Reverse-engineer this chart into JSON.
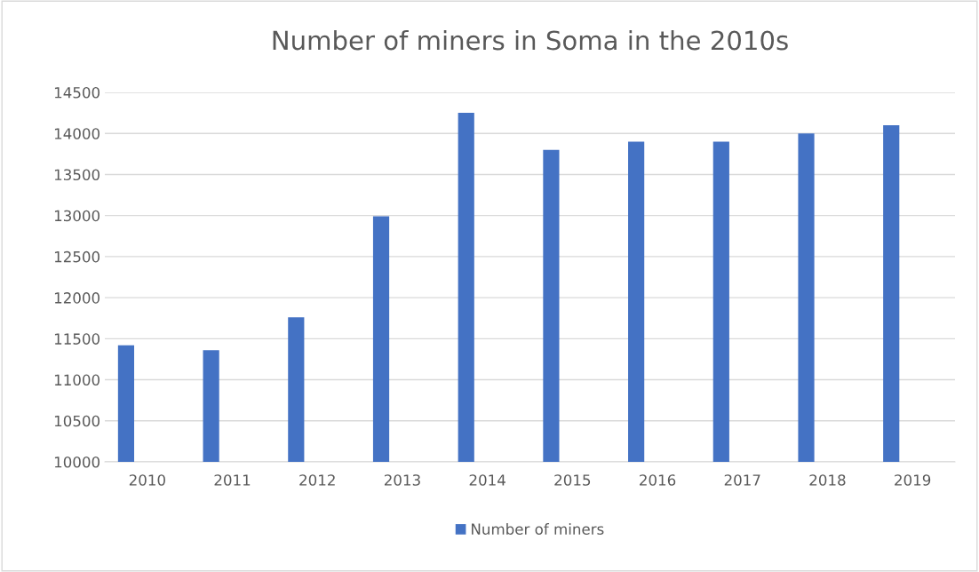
{
  "chart_data": {
    "type": "bar",
    "title": "Number of miners in Soma in the 2010s",
    "categories": [
      "2010",
      "2011",
      "2012",
      "2013",
      "2014",
      "2015",
      "2016",
      "2017",
      "2018",
      "2019"
    ],
    "series": [
      {
        "name": "Number of miners",
        "color": "#4472c4",
        "values": [
          11420,
          11360,
          11760,
          12990,
          14250,
          13800,
          13900,
          13900,
          14000,
          14100
        ]
      }
    ],
    "ylim": [
      10000,
      14500
    ],
    "yticks": [
      10000,
      10500,
      11000,
      11500,
      12000,
      12500,
      13000,
      13500,
      14000,
      14500
    ],
    "grid": "y",
    "legend": "bottom"
  }
}
